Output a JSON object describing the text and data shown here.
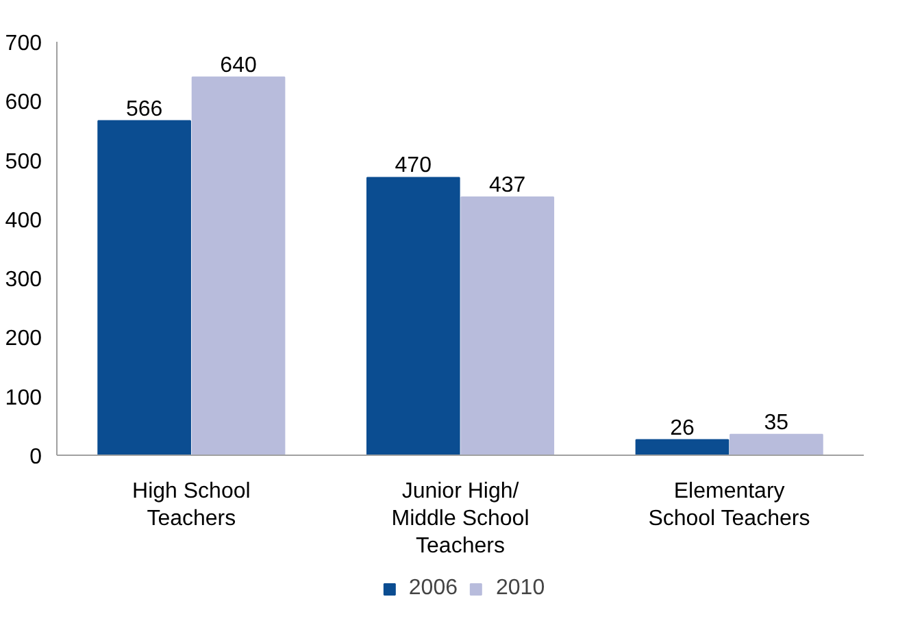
{
  "chart_data": {
    "type": "bar",
    "categories": [
      "High School\nTeachers",
      "Junior High/\nMiddle School\nTeachers",
      "Elementary\nSchool Teachers"
    ],
    "series": [
      {
        "name": "2006",
        "color": "#0b4d91",
        "values": [
          566,
          470,
          26
        ]
      },
      {
        "name": "2010",
        "color": "#b8bcdc",
        "values": [
          640,
          437,
          35
        ]
      }
    ],
    "ylim": [
      0,
      700
    ],
    "yticks": [
      0,
      100,
      200,
      300,
      400,
      500,
      600,
      700
    ],
    "data_labels": true,
    "grid": false,
    "legend": "bottom"
  }
}
